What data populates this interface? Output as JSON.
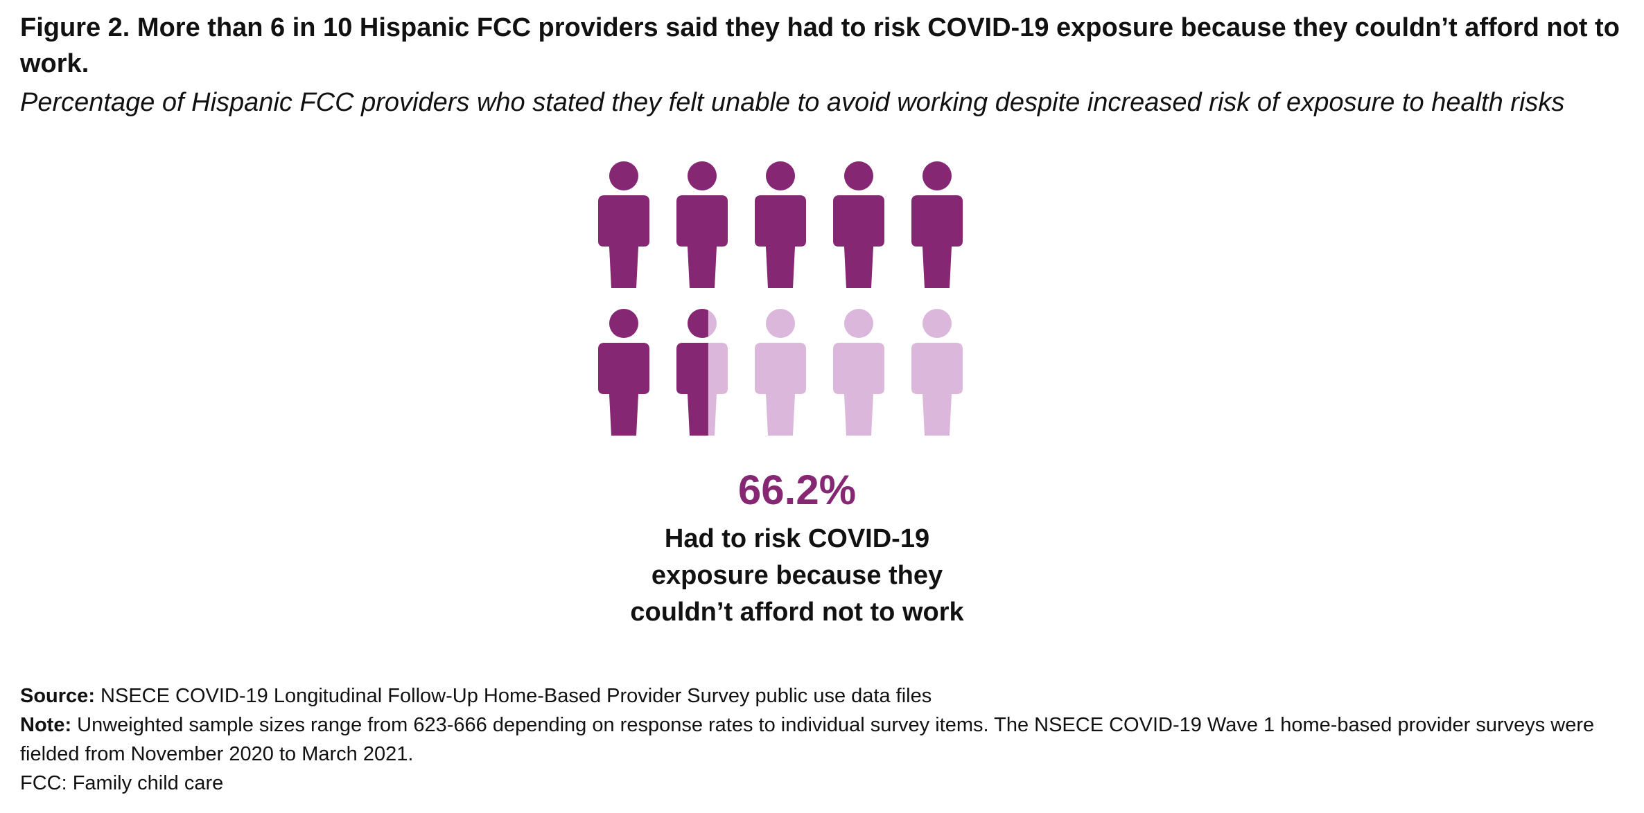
{
  "figure": {
    "title": "Figure 2. More than 6 in 10 Hispanic FCC providers said they had to risk COVID-19 exposure because they couldn’t afford not to work.",
    "subtitle": "Percentage of Hispanic FCC providers who stated they felt unable to avoid working despite increased risk of exposure to health risks"
  },
  "chart_data": {
    "type": "pictograph",
    "icon": "person-icon",
    "total_icons": 10,
    "value": 66.2,
    "value_label": "66.2%",
    "label": "Had to risk COVID-19 exposure because they couldn’t afford not to work",
    "fill_color": "#862774",
    "empty_color": "#dbb8db"
  },
  "footer": {
    "source_label": "Source:",
    "source_text": " NSECE COVID-19 Longitudinal Follow-Up Home-Based Provider Survey public use data files",
    "note_label": "Note:",
    "note_text": " Unweighted sample sizes range from 623-666 depending on response rates to individual survey items. The NSECE COVID-19 Wave 1 home-based provider surveys were fielded from November 2020 to March 2021.",
    "abbrev": "FCC: Family child care"
  }
}
